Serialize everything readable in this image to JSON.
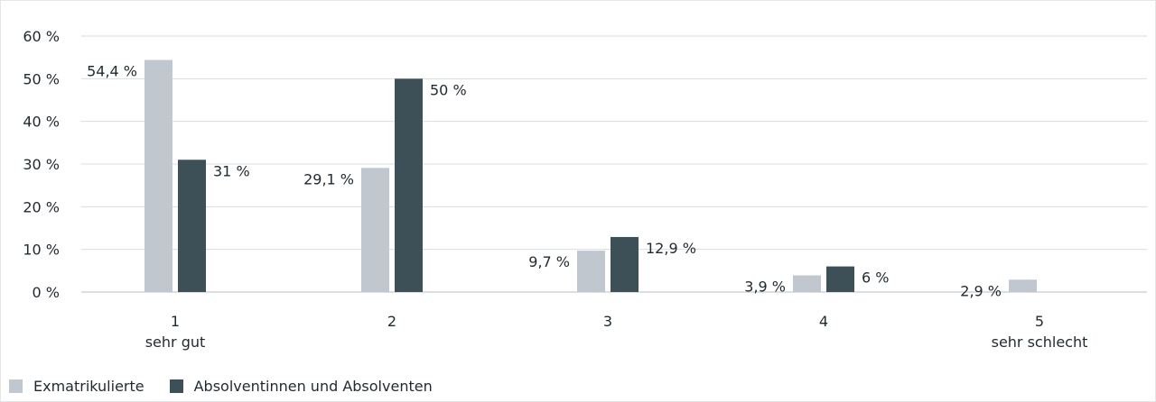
{
  "chart_data": {
    "type": "bar",
    "categories": [
      "1",
      "2",
      "3",
      "4",
      "5"
    ],
    "category_sublabels": [
      "sehr gut",
      "",
      "",
      "",
      "sehr schlecht"
    ],
    "series": [
      {
        "name": "Exmatrikulierte",
        "color": "#c1c7ce",
        "values": [
          54.4,
          29.1,
          9.7,
          3.9,
          2.9
        ],
        "labels": [
          "54,4 %",
          "29,1 %",
          "9,7 %",
          "3,9 %",
          "2,9 %"
        ]
      },
      {
        "name": "Absolventinnen und Absolventen",
        "color": "#3d4f57",
        "values": [
          31,
          50,
          12.9,
          6,
          null
        ],
        "labels": [
          "31 %",
          "50 %",
          "12,9 %",
          "6 %",
          ""
        ]
      }
    ],
    "ylim": [
      0,
      60
    ],
    "yticks": [
      0,
      10,
      20,
      30,
      40,
      50,
      60
    ],
    "ytick_labels": [
      "0 %",
      "10 %",
      "20 %",
      "30 %",
      "40 %",
      "50 %",
      "60 %"
    ],
    "grid": true,
    "legend_position": "bottom-left"
  }
}
